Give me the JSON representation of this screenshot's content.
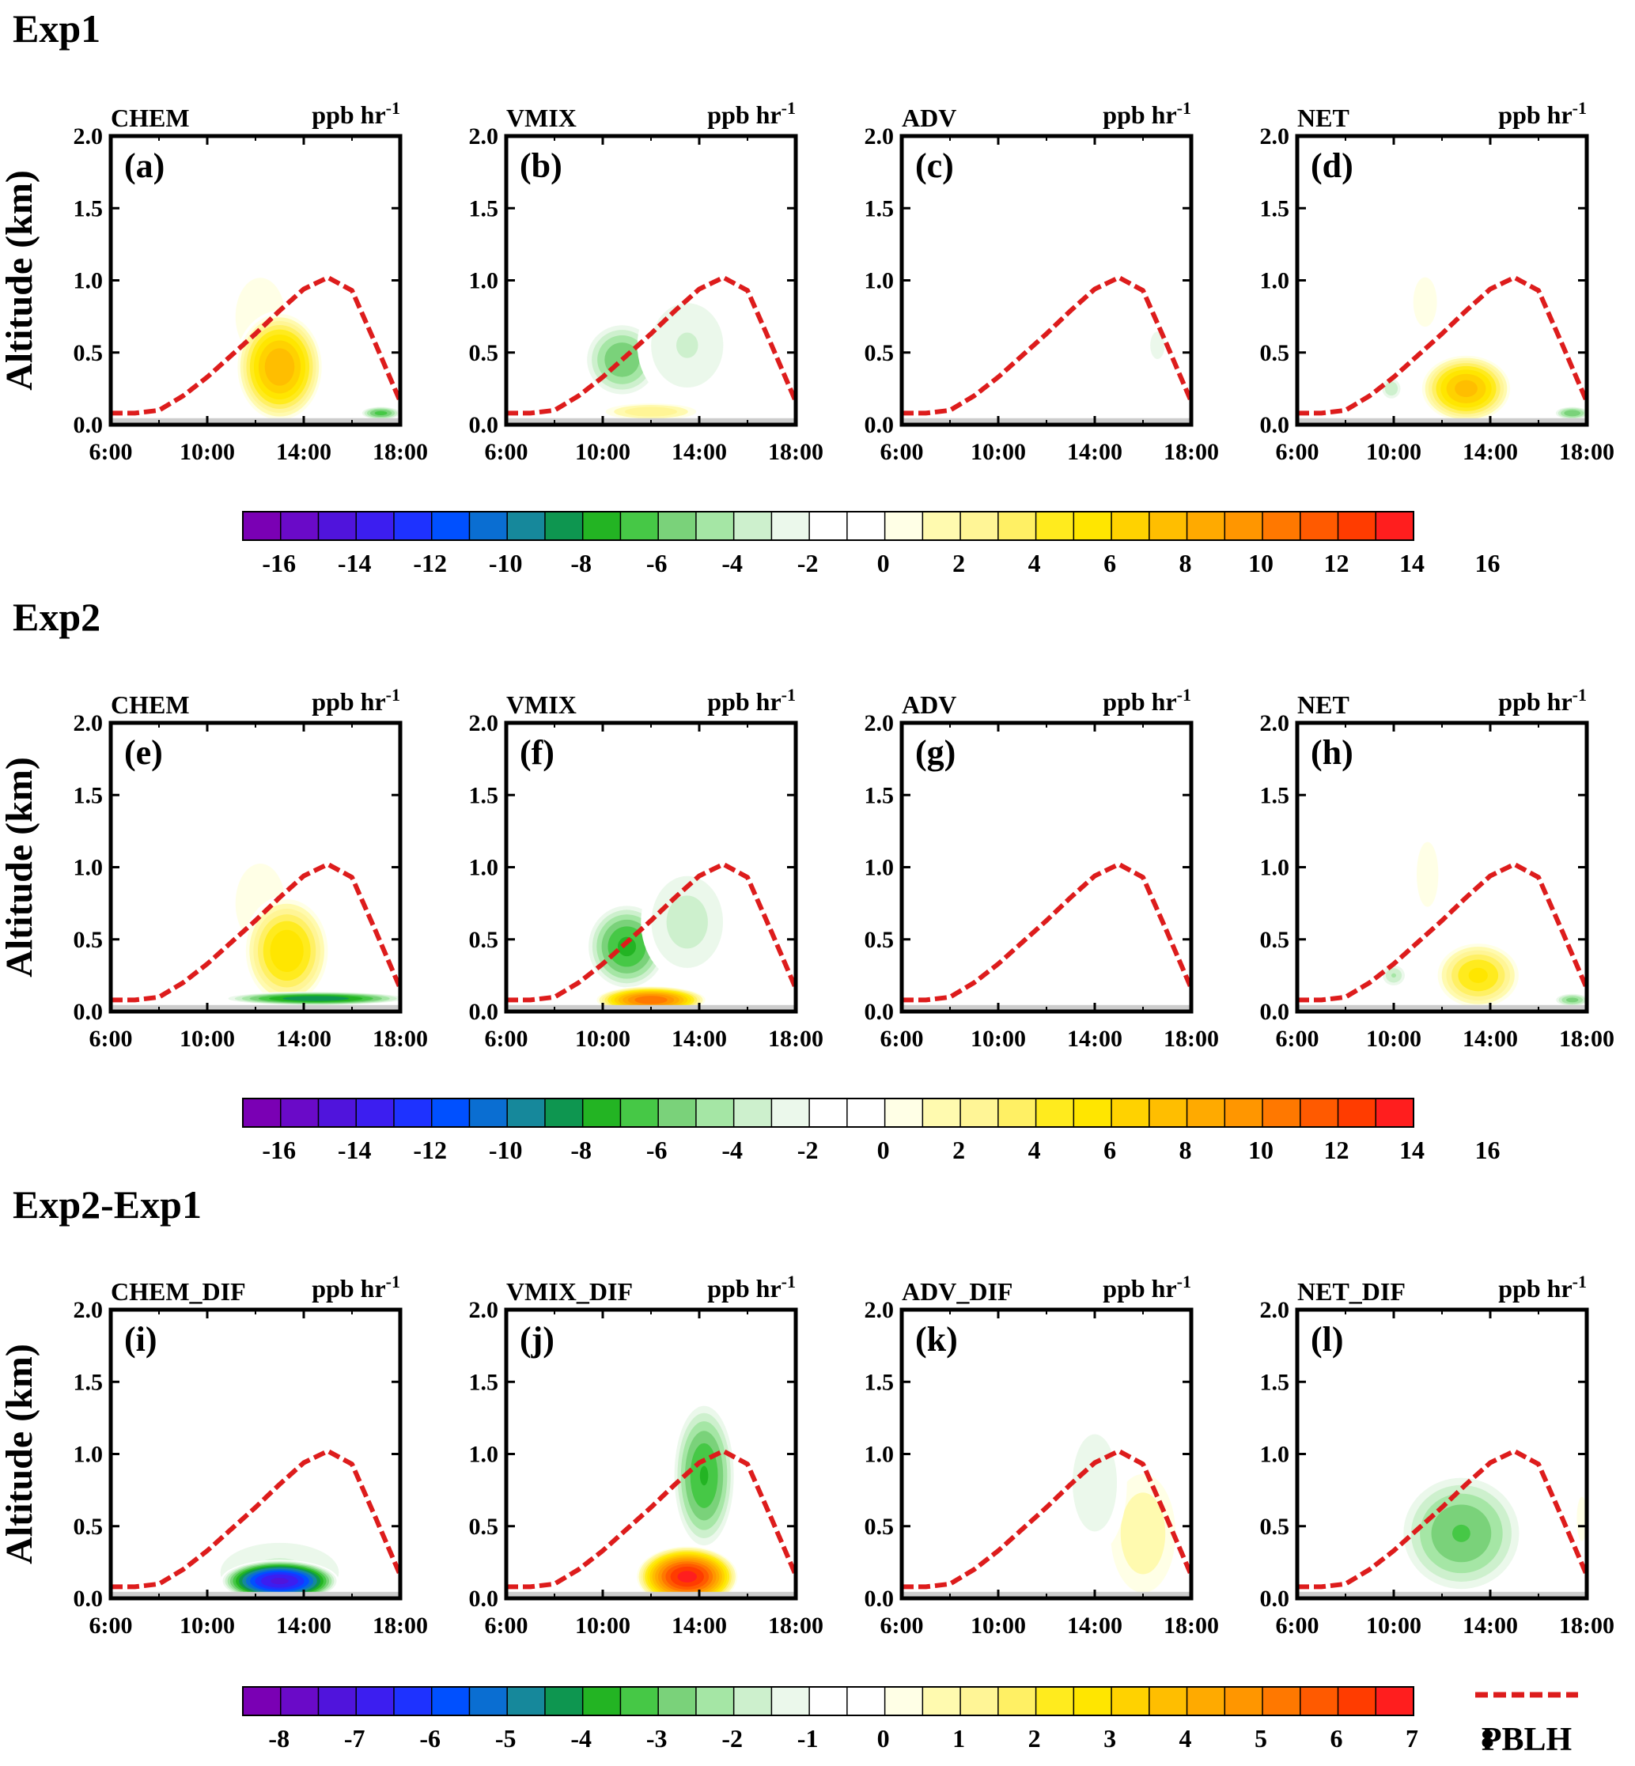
{
  "sections": [
    {
      "title": "Exp1"
    },
    {
      "title": "Exp2"
    },
    {
      "title": "Exp2-Exp1"
    }
  ],
  "axes": {
    "ylabel": "Altitude (km)",
    "x_ticks": [
      "6:00",
      "10:00",
      "14:00",
      "18:00"
    ],
    "y_ticks": [
      "0.0",
      "0.5",
      "1.0",
      "1.5",
      "2.0"
    ],
    "xlim": [
      6,
      18
    ],
    "ylim": [
      0,
      2.0
    ]
  },
  "unit_label": {
    "base": "ppb hr",
    "sup": "-1"
  },
  "colors": {
    "pblh": "#dd1c1c",
    "ground": "#cccccc",
    "palette": [
      "#7a00b4",
      "#6a0ac8",
      "#5014dc",
      "#3c1ef0",
      "#1e32ff",
      "#0050ff",
      "#0a6ed2",
      "#16889b",
      "#0e9650",
      "#23b423",
      "#46c846",
      "#7ad27a",
      "#a5e6a5",
      "#cdf0cd",
      "#ebf8eb",
      "#ffffff",
      "#ffffff",
      "#ffffe6",
      "#fffaaf",
      "#fff596",
      "#fff064",
      "#ffeb1e",
      "#ffe600",
      "#ffd200",
      "#ffbe00",
      "#ffaa00",
      "#ff9600",
      "#ff7800",
      "#ff5a00",
      "#ff3c00",
      "#ff1e1e"
    ]
  },
  "colorbars": [
    {
      "labels": [
        "-16",
        "-14",
        "-12",
        "-10",
        "-8",
        "-6",
        "-4",
        "-2",
        "0",
        "2",
        "4",
        "6",
        "8",
        "10",
        "12",
        "14",
        "16"
      ]
    },
    {
      "labels": [
        "-16",
        "-14",
        "-12",
        "-10",
        "-8",
        "-6",
        "-4",
        "-2",
        "0",
        "2",
        "4",
        "6",
        "8",
        "10",
        "12",
        "14",
        "16"
      ]
    },
    {
      "labels": [
        "-8",
        "-7",
        "-6",
        "-5",
        "-4",
        "-3",
        "-2",
        "-1",
        "0",
        "1",
        "2",
        "3",
        "4",
        "5",
        "6",
        "7",
        "8"
      ]
    }
  ],
  "legend": {
    "label": "PBLH"
  },
  "chart_data": {
    "type": "heatmap",
    "pblh": {
      "name": "PBLH",
      "x": [
        6,
        7,
        8,
        9,
        10,
        11,
        12,
        13,
        14,
        15,
        16,
        17,
        18
      ],
      "y": [
        0.08,
        0.08,
        0.1,
        0.2,
        0.33,
        0.48,
        0.63,
        0.79,
        0.94,
        1.02,
        0.93,
        0.55,
        0.16
      ]
    },
    "panels": [
      {
        "name": "CHEM",
        "letter": "(a)",
        "row": 0,
        "blobs": [
          {
            "x": 12.2,
            "y": 0.75,
            "rx": 3.0,
            "ry": 0.78,
            "v": 1.7
          },
          {
            "x": 13.0,
            "y": 0.4,
            "rx": 1.9,
            "ry": 0.4,
            "v": 9.5
          },
          {
            "x": 17.2,
            "y": 0.08,
            "rx": 0.9,
            "ry": 0.05,
            "v": -6
          }
        ]
      },
      {
        "name": "VMIX",
        "letter": "(b)",
        "row": 0,
        "blobs": [
          {
            "x": 10.8,
            "y": 0.45,
            "rx": 1.7,
            "ry": 0.28,
            "v": -5.5
          },
          {
            "x": 13.5,
            "y": 0.55,
            "rx": 2.3,
            "ry": 0.45,
            "v": -2.6
          },
          {
            "x": 12.0,
            "y": 0.09,
            "rx": 2.3,
            "ry": 0.07,
            "v": 4.5
          }
        ]
      },
      {
        "name": "ADV",
        "letter": "(c)",
        "row": 0,
        "blobs": [
          {
            "x": 16.6,
            "y": 0.55,
            "rx": 1.2,
            "ry": 0.38,
            "v": -1.6
          },
          {
            "x": 8.8,
            "y": 0.19,
            "rx": 0.6,
            "ry": 0.05,
            "v": -1.4
          }
        ]
      },
      {
        "name": "NET",
        "letter": "(d)",
        "row": 0,
        "blobs": [
          {
            "x": 11.3,
            "y": 0.85,
            "rx": 1.2,
            "ry": 0.42,
            "v": 1.8
          },
          {
            "x": 13.0,
            "y": 0.25,
            "rx": 2.0,
            "ry": 0.25,
            "v": 9.0
          },
          {
            "x": 9.9,
            "y": 0.25,
            "rx": 0.5,
            "ry": 0.09,
            "v": -3.5
          },
          {
            "x": 6.3,
            "y": 0.2,
            "rx": 0.4,
            "ry": 0.15,
            "v": -1.4
          },
          {
            "x": 17.4,
            "y": 0.08,
            "rx": 0.8,
            "ry": 0.05,
            "v": -5.5
          }
        ]
      },
      {
        "name": "CHEM",
        "letter": "(e)",
        "row": 1,
        "blobs": [
          {
            "x": 12.2,
            "y": 0.75,
            "rx": 3.0,
            "ry": 0.8,
            "v": 1.7
          },
          {
            "x": 13.3,
            "y": 0.42,
            "rx": 1.9,
            "ry": 0.4,
            "v": 7.5
          },
          {
            "x": 14.5,
            "y": 0.09,
            "rx": 4.0,
            "ry": 0.05,
            "v": -8.5
          }
        ]
      },
      {
        "name": "VMIX",
        "letter": "(f)",
        "row": 1,
        "blobs": [
          {
            "x": 11.0,
            "y": 0.45,
            "rx": 1.8,
            "ry": 0.32,
            "v": -6.8
          },
          {
            "x": 13.5,
            "y": 0.62,
            "rx": 2.1,
            "ry": 0.45,
            "v": -3.0
          },
          {
            "x": 12.0,
            "y": 0.08,
            "rx": 2.4,
            "ry": 0.1,
            "v": 12.5
          }
        ]
      },
      {
        "name": "ADV",
        "letter": "(g)",
        "row": 1,
        "blobs": []
      },
      {
        "name": "NET",
        "letter": "(h)",
        "row": 1,
        "blobs": [
          {
            "x": 11.4,
            "y": 0.95,
            "rx": 1.1,
            "ry": 0.55,
            "v": 1.8
          },
          {
            "x": 13.5,
            "y": 0.25,
            "rx": 1.9,
            "ry": 0.25,
            "v": 6.8
          },
          {
            "x": 10.0,
            "y": 0.25,
            "rx": 0.6,
            "ry": 0.09,
            "v": -3.6
          },
          {
            "x": 6.3,
            "y": 0.2,
            "rx": 0.4,
            "ry": 0.15,
            "v": -1.4
          },
          {
            "x": 17.4,
            "y": 0.08,
            "rx": 0.8,
            "ry": 0.05,
            "v": -5.0
          }
        ]
      },
      {
        "name": "CHEM_DIF",
        "letter": "(i)",
        "row": 2,
        "blobs": [
          {
            "x": 13.0,
            "y": 0.18,
            "rx": 3.6,
            "ry": 0.3,
            "v": -1.4
          },
          {
            "x": 13.0,
            "y": 0.12,
            "rx": 2.5,
            "ry": 0.15,
            "v": -6.9
          }
        ]
      },
      {
        "name": "VMIX_DIF",
        "letter": "(j)",
        "row": 2,
        "blobs": [
          {
            "x": 14.2,
            "y": 0.85,
            "rx": 1.4,
            "ry": 0.55,
            "v": -3.3
          },
          {
            "x": 13.5,
            "y": 0.15,
            "rx": 2.2,
            "ry": 0.22,
            "v": 7.5
          }
        ]
      },
      {
        "name": "ADV_DIF",
        "letter": "(k)",
        "row": 2,
        "blobs": [
          {
            "x": 16.0,
            "y": 0.45,
            "rx": 1.8,
            "ry": 0.55,
            "v": 1.7
          },
          {
            "x": 14.0,
            "y": 0.8,
            "rx": 1.5,
            "ry": 0.55,
            "v": -1.2
          }
        ]
      },
      {
        "name": "NET_DIF",
        "letter": "(l)",
        "row": 2,
        "blobs": [
          {
            "x": 12.8,
            "y": 0.45,
            "rx": 2.8,
            "ry": 0.45,
            "v": -2.8
          },
          {
            "x": 17.8,
            "y": 0.55,
            "rx": 0.35,
            "ry": 0.25,
            "v": 1.2
          }
        ]
      }
    ]
  }
}
